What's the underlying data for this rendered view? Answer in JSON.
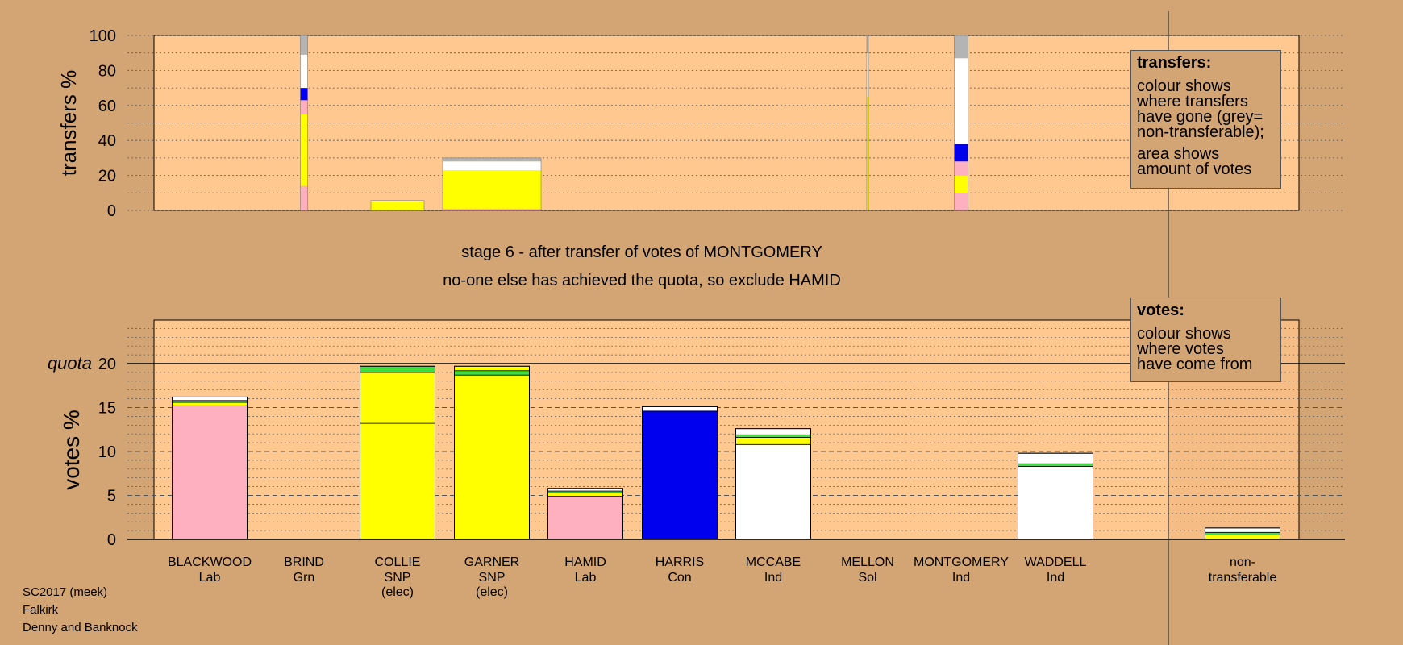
{
  "stage": {
    "line1": "stage 6 - after transfer of votes of MONTGOMERY",
    "line2": "no-one else has achieved the quota, so exclude HAMID"
  },
  "legend_transfers": {
    "title": "transfers:",
    "p1": "colour shows\nwhere transfers\nhave gone (grey=\nnon-transferable);",
    "p2": "area shows\namount of votes"
  },
  "legend_votes": {
    "title": "votes:",
    "p1": "colour shows\nwhere votes\nhave come from"
  },
  "footer": {
    "line1": "SC2017 (meek)",
    "line2": "Falkirk",
    "line3": "Denny and Banknock"
  },
  "colors": {
    "background": "#d4a574",
    "plot_area": "#ffc890",
    "Lab": "#ffb0c0",
    "SNP": "#ffff00",
    "Con": "#0000ee",
    "Ind": "#ffffff",
    "Grn": "#40dd40",
    "Sol": "#ff8080",
    "nontransferable": "#b4b4b4",
    "dark_green": "#226622"
  },
  "chart_data": [
    {
      "type": "bar",
      "ylabel": "transfers %",
      "ylim": [
        0,
        100
      ],
      "yticks": [
        "0",
        "20",
        "40",
        "60",
        "80",
        "100"
      ],
      "categories": [
        "BLACKWOOD",
        "BRIND",
        "COLLIE",
        "GARNER",
        "HAMID",
        "HARRIS",
        "MCCABE",
        "MELLON",
        "MONTGOMERY",
        "WADDELL"
      ],
      "transfer_bars": [
        {
          "candidate": "BRIND",
          "segments": [
            {
              "to": "Lab",
              "value": 14
            },
            {
              "to": "SNP",
              "value": 41
            },
            {
              "to": "Lab",
              "value": 8
            },
            {
              "to": "Con",
              "value": 7
            },
            {
              "to": "Ind",
              "value": 19
            },
            {
              "to": "nontransferable",
              "value": 11
            }
          ]
        },
        {
          "candidate": "COLLIE",
          "segments": [
            {
              "to": "SNP",
              "value": 5
            },
            {
              "to": "Ind",
              "value": 0.6
            }
          ]
        },
        {
          "candidate": "GARNER",
          "segments": [
            {
              "to": "Lab",
              "value": 1
            },
            {
              "to": "SNP",
              "value": 22
            },
            {
              "to": "Ind",
              "value": 5
            },
            {
              "to": "nontransferable",
              "value": 2
            }
          ]
        },
        {
          "candidate": "MELLON",
          "segments": [
            {
              "to": "SNP",
              "value": 65
            },
            {
              "to": "Ind",
              "value": 25
            },
            {
              "to": "nontransferable",
              "value": 10
            }
          ]
        },
        {
          "candidate": "MONTGOMERY",
          "segments": [
            {
              "to": "Lab",
              "value": 10
            },
            {
              "to": "SNP",
              "value": 10
            },
            {
              "to": "Lab",
              "value": 8
            },
            {
              "to": "Con",
              "value": 10
            },
            {
              "to": "Ind",
              "value": 49
            },
            {
              "to": "nontransferable",
              "value": 13
            }
          ]
        }
      ]
    },
    {
      "type": "bar",
      "ylabel": "votes %",
      "ylim": [
        0,
        20
      ],
      "yticks": [
        "0",
        "5",
        "10",
        "15",
        "20"
      ],
      "quota_label": "quota",
      "quota": 20,
      "candidates": [
        {
          "name": "BLACKWOOD",
          "party": "Lab",
          "elec": "",
          "segments": [
            {
              "from": "Lab",
              "value": 15.2
            },
            {
              "from": "SNP",
              "value": 0.4
            },
            {
              "from": "Grn",
              "value": 0.2
            },
            {
              "from": "Ind",
              "value": 0.4
            }
          ]
        },
        {
          "name": "BRIND",
          "party": "Grn",
          "elec": "",
          "segments": []
        },
        {
          "name": "COLLIE",
          "party": "SNP",
          "elec": "(elec)",
          "segments": [
            {
              "from": "SNP",
              "value": 13.2
            },
            {
              "from": "SNP",
              "value": 5.8
            },
            {
              "from": "Grn",
              "value": 0.7
            }
          ]
        },
        {
          "name": "GARNER",
          "party": "SNP",
          "elec": "(elec)",
          "segments": [
            {
              "from": "SNP",
              "value": 18.7
            },
            {
              "from": "Grn",
              "value": 0.5
            },
            {
              "from": "SNP",
              "value": 0.5
            }
          ]
        },
        {
          "name": "HAMID",
          "party": "Lab",
          "elec": "",
          "segments": [
            {
              "from": "Lab",
              "value": 4.9
            },
            {
              "from": "SNP",
              "value": 0.4
            },
            {
              "from": "Grn",
              "value": 0.2
            },
            {
              "from": "Ind",
              "value": 0.3
            }
          ]
        },
        {
          "name": "HARRIS",
          "party": "Con",
          "elec": "",
          "segments": [
            {
              "from": "Con",
              "value": 14.6
            },
            {
              "from": "Ind",
              "value": 0.5
            }
          ]
        },
        {
          "name": "MCCABE",
          "party": "Ind",
          "elec": "",
          "segments": [
            {
              "from": "Ind",
              "value": 10.8
            },
            {
              "from": "SNP",
              "value": 0.8
            },
            {
              "from": "Grn",
              "value": 0.3
            },
            {
              "from": "Ind",
              "value": 0.7
            }
          ]
        },
        {
          "name": "MELLON",
          "party": "Sol",
          "elec": "",
          "segments": []
        },
        {
          "name": "MONTGOMERY",
          "party": "Ind",
          "elec": "",
          "segments": []
        },
        {
          "name": "WADDELL",
          "party": "Ind",
          "elec": "",
          "segments": [
            {
              "from": "Ind",
              "value": 8.3
            },
            {
              "from": "Grn",
              "value": 0.3
            },
            {
              "from": "Ind",
              "value": 1.2
            }
          ]
        }
      ],
      "nontransferable": {
        "label_line1": "non-",
        "label_line2": "transferable",
        "segments": [
          {
            "from": "SNP",
            "value": 0.5
          },
          {
            "from": "Grn",
            "value": 0.3
          },
          {
            "from": "Ind",
            "value": 0.5
          }
        ]
      }
    }
  ]
}
